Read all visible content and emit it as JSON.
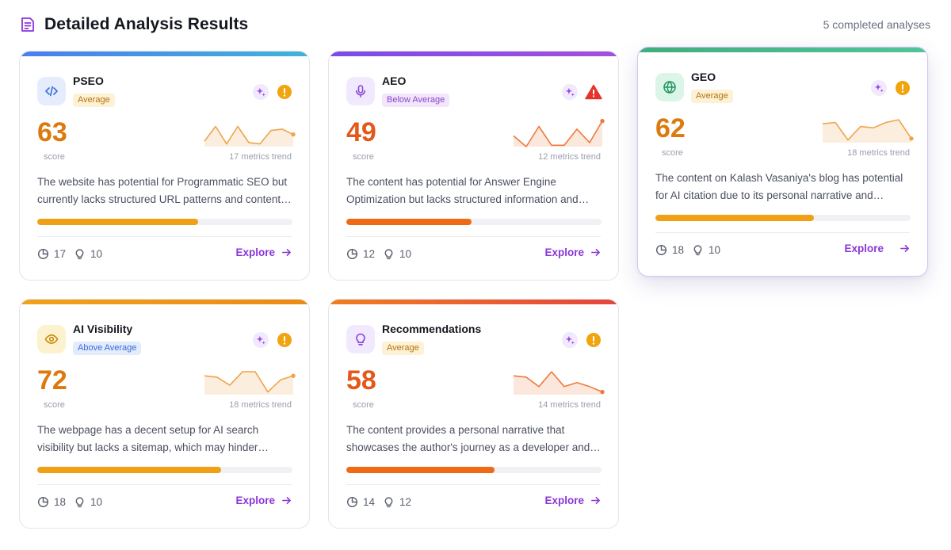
{
  "header": {
    "title": "Detailed Analysis Results",
    "count": "5 completed analyses"
  },
  "labels": {
    "score": "score",
    "explore": "Explore"
  },
  "cards": [
    {
      "title": "PSEO",
      "badge": "Average",
      "score": "63",
      "trend_label": "17 metrics trend",
      "description": "The website has potential for Programmatic SEO but currently lacks structured URL patterns and content templates.",
      "progress": 0.63,
      "stat_metrics": "17",
      "stat_tips": "10",
      "icon": "code-icon",
      "alert": "warning-circle-icon",
      "trend": [
        0.2,
        0.75,
        0.1,
        0.75,
        0.15,
        0.1,
        0.6,
        0.65,
        0.45
      ]
    },
    {
      "title": "AEO",
      "badge": "Below Average",
      "score": "49",
      "trend_label": "12 metrics trend",
      "description": "The content has potential for Answer Engine Optimization but lacks structured information and clear answers.",
      "progress": 0.49,
      "stat_metrics": "12",
      "stat_tips": "10",
      "icon": "microphone-icon",
      "alert": "warning-triangle-icon",
      "trend": [
        0.4,
        0.0,
        0.75,
        0.05,
        0.05,
        0.65,
        0.15,
        0.95
      ]
    },
    {
      "title": "GEO",
      "badge": "Average",
      "score": "62",
      "trend_label": "18 metrics trend",
      "description": "The content on Kalash Vasaniya's blog has potential for AI citation due to its personal narrative and insights.",
      "progress": 0.62,
      "stat_metrics": "18",
      "stat_tips": "10",
      "icon": "globe-icon",
      "alert": "warning-circle-icon",
      "trend": [
        0.7,
        0.75,
        0.1,
        0.6,
        0.55,
        0.75,
        0.85,
        0.15
      ]
    },
    {
      "title": "AI Visibility",
      "badge": "Above Average",
      "score": "72",
      "trend_label": "18 metrics trend",
      "description": "The webpage has a decent setup for AI search visibility but lacks a sitemap, which may hinder discoverability.",
      "progress": 0.72,
      "stat_metrics": "18",
      "stat_tips": "10",
      "icon": "eye-icon",
      "alert": "warning-circle-icon",
      "trend": [
        0.7,
        0.65,
        0.35,
        0.85,
        0.85,
        0.1,
        0.55,
        0.7
      ]
    },
    {
      "title": "Recommendations",
      "badge": "Average",
      "score": "58",
      "trend_label": "14 metrics trend",
      "description": "The content provides a personal narrative that showcases the author's journey as a developer and creator.",
      "progress": 0.58,
      "stat_metrics": "14",
      "stat_tips": "12",
      "icon": "lightbulb-icon",
      "alert": "warning-circle-icon",
      "trend": [
        0.7,
        0.65,
        0.3,
        0.85,
        0.3,
        0.45,
        0.3,
        0.1
      ]
    }
  ]
}
